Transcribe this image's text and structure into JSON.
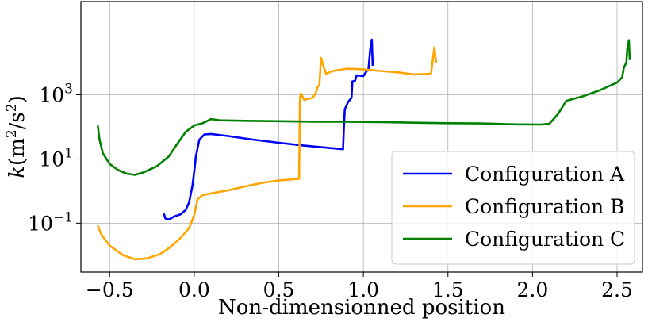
{
  "chart_data": {
    "type": "line",
    "title": "",
    "xlabel": "Non-dimensionned position",
    "ylabel": "k(m²/s²)",
    "ylabel_parts": {
      "var": "k",
      "open": "(m",
      "sup1": "2",
      "mid": "/s",
      "sup2": "2",
      "close": ")"
    },
    "xlim": [
      -0.67,
      2.65
    ],
    "ylim": [
      0.003,
      800000
    ],
    "yscale": "log",
    "grid": true,
    "legend_position": "lower right",
    "x_ticks": [
      {
        "value": -0.5,
        "label": "−0.5"
      },
      {
        "value": 0.0,
        "label": "0.0"
      },
      {
        "value": 0.5,
        "label": "0.5"
      },
      {
        "value": 1.0,
        "label": "1.0"
      },
      {
        "value": 1.5,
        "label": "1.5"
      },
      {
        "value": 2.0,
        "label": "2.0"
      },
      {
        "value": 2.5,
        "label": "2.5"
      }
    ],
    "y_ticks": [
      {
        "value": 0.1,
        "base": "10",
        "exp": "−1"
      },
      {
        "value": 10,
        "base": "10",
        "exp": "1"
      },
      {
        "value": 1000,
        "base": "10",
        "exp": "3"
      }
    ],
    "series": [
      {
        "name": "Configuration A",
        "color": "#0000ff",
        "points": [
          [
            -0.18,
            0.2
          ],
          [
            -0.17,
            0.14
          ],
          [
            -0.15,
            0.13
          ],
          [
            -0.12,
            0.16
          ],
          [
            -0.08,
            0.19
          ],
          [
            -0.05,
            0.26
          ],
          [
            -0.03,
            0.45
          ],
          [
            -0.01,
            1.5
          ],
          [
            0.0,
            4
          ],
          [
            0.01,
            12
          ],
          [
            0.03,
            40
          ],
          [
            0.06,
            58
          ],
          [
            0.1,
            60
          ],
          [
            0.2,
            52
          ],
          [
            0.35,
            40
          ],
          [
            0.5,
            32
          ],
          [
            0.65,
            26
          ],
          [
            0.8,
            22
          ],
          [
            0.88,
            20
          ],
          [
            0.885,
            100
          ],
          [
            0.89,
            350
          ],
          [
            0.91,
            600
          ],
          [
            0.93,
            800
          ],
          [
            0.935,
            2600
          ],
          [
            0.95,
            2700
          ],
          [
            0.96,
            4000
          ],
          [
            1.0,
            3800
          ],
          [
            1.02,
            5500
          ],
          [
            1.03,
            6000
          ],
          [
            1.04,
            25000
          ],
          [
            1.05,
            52000
          ],
          [
            1.055,
            8000
          ]
        ]
      },
      {
        "name": "Configuration B",
        "color": "#ffa500",
        "points": [
          [
            -0.57,
            0.085
          ],
          [
            -0.55,
            0.045
          ],
          [
            -0.5,
            0.02
          ],
          [
            -0.42,
            0.01
          ],
          [
            -0.35,
            0.0075
          ],
          [
            -0.28,
            0.008
          ],
          [
            -0.2,
            0.011
          ],
          [
            -0.14,
            0.018
          ],
          [
            -0.08,
            0.035
          ],
          [
            -0.03,
            0.07
          ],
          [
            0.0,
            0.18
          ],
          [
            0.02,
            0.55
          ],
          [
            0.05,
            0.75
          ],
          [
            0.1,
            0.85
          ],
          [
            0.2,
            1.05
          ],
          [
            0.3,
            1.4
          ],
          [
            0.4,
            1.8
          ],
          [
            0.5,
            2.15
          ],
          [
            0.62,
            2.4
          ],
          [
            0.625,
            800
          ],
          [
            0.63,
            1100
          ],
          [
            0.65,
            700
          ],
          [
            0.7,
            800
          ],
          [
            0.72,
            1200
          ],
          [
            0.73,
            1800
          ],
          [
            0.74,
            2000
          ],
          [
            0.75,
            14000
          ],
          [
            0.76,
            9000
          ],
          [
            0.78,
            4500
          ],
          [
            0.82,
            5500
          ],
          [
            0.9,
            6500
          ],
          [
            1.0,
            6200
          ],
          [
            1.1,
            5500
          ],
          [
            1.2,
            5000
          ],
          [
            1.3,
            4300
          ],
          [
            1.4,
            4500
          ],
          [
            1.42,
            30000
          ],
          [
            1.43,
            10000
          ]
        ]
      },
      {
        "name": "Configuration C",
        "color": "#008000",
        "points": [
          [
            -0.57,
            110
          ],
          [
            -0.56,
            40
          ],
          [
            -0.54,
            15
          ],
          [
            -0.5,
            7
          ],
          [
            -0.45,
            4.5
          ],
          [
            -0.4,
            3.5
          ],
          [
            -0.35,
            3.2
          ],
          [
            -0.3,
            3.8
          ],
          [
            -0.22,
            6
          ],
          [
            -0.15,
            12
          ],
          [
            -0.1,
            30
          ],
          [
            -0.05,
            70
          ],
          [
            0.0,
            110
          ],
          [
            0.05,
            130
          ],
          [
            0.1,
            175
          ],
          [
            0.15,
            160
          ],
          [
            0.3,
            155
          ],
          [
            0.5,
            150
          ],
          [
            0.7,
            145
          ],
          [
            0.9,
            145
          ],
          [
            1.1,
            140
          ],
          [
            1.3,
            135
          ],
          [
            1.5,
            130
          ],
          [
            1.7,
            128
          ],
          [
            1.9,
            120
          ],
          [
            2.05,
            118
          ],
          [
            2.1,
            125
          ],
          [
            2.15,
            250
          ],
          [
            2.2,
            650
          ],
          [
            2.3,
            900
          ],
          [
            2.4,
            1400
          ],
          [
            2.5,
            2400
          ],
          [
            2.53,
            3500
          ],
          [
            2.54,
            7000
          ],
          [
            2.555,
            10000
          ],
          [
            2.56,
            25000
          ],
          [
            2.57,
            50000
          ],
          [
            2.575,
            12000
          ]
        ]
      }
    ]
  }
}
